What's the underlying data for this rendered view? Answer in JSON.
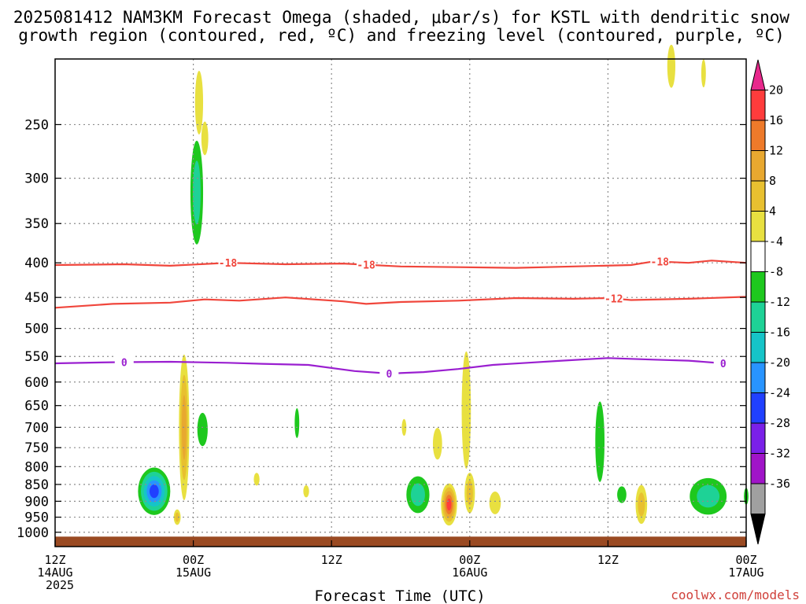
{
  "title": {
    "line1": "2025081412 NAM3KM Forecast Omega (shaded, μbar/s) for KSTL with dendritic snow",
    "line2": "growth region (contoured, red, ºC) and freezing level (contoured, purple, ºC)"
  },
  "xlabel": "Forecast Time (UTC)",
  "credit": "coolwx.com/models",
  "colors": {
    "dgz_contour": "#f0463c",
    "freezing_contour": "#9a1fd0",
    "ground": "#9a4a22",
    "grid": "#8c8c8c"
  },
  "chart_data": {
    "type": "heatmap",
    "y_axis": {
      "scale": "pressure (log)",
      "ylim": [
        1050,
        200
      ],
      "ticks": [
        250,
        300,
        350,
        400,
        450,
        500,
        550,
        600,
        650,
        700,
        750,
        800,
        850,
        900,
        950,
        1000
      ]
    },
    "x_axis": {
      "xlim": [
        "2025-08-14T12Z",
        "2025-08-17T00Z"
      ],
      "ticks": [
        {
          "t": 0,
          "line1": "12Z",
          "line2": "14AUG",
          "line3": "2025"
        },
        {
          "t": 12,
          "line1": "00Z",
          "line2": "15AUG",
          "line3": ""
        },
        {
          "t": 24,
          "line1": "12Z",
          "line2": "",
          "line3": ""
        },
        {
          "t": 36,
          "line1": "00Z",
          "line2": "16AUG",
          "line3": ""
        },
        {
          "t": 48,
          "line1": "12Z",
          "line2": "",
          "line3": ""
        },
        {
          "t": 60,
          "line1": "00Z",
          "line2": "17AUG",
          "line3": ""
        }
      ]
    },
    "colorbar": {
      "labels": [
        "20",
        "16",
        "12",
        "8",
        "4",
        "-4",
        "-8",
        "-12",
        "-16",
        "-20",
        "-24",
        "-28",
        "-32",
        "-36"
      ],
      "colors": [
        "#e8288c",
        "#ff3c3c",
        "#ee7a2a",
        "#e8a830",
        "#e8c030",
        "#e8e040",
        "#ffffff",
        "#1ec81e",
        "#1ed296",
        "#16c4c8",
        "#2894ff",
        "#2040ff",
        "#7a20e8",
        "#a014c8",
        "#a0a0a0",
        "#000000"
      ]
    },
    "contours": [
      {
        "name": "-18",
        "level": -18,
        "color": "#f0463c",
        "label_at": [
          15,
          27,
          52.5
        ],
        "points": [
          [
            0,
            403
          ],
          [
            6,
            402
          ],
          [
            10,
            404
          ],
          [
            15,
            400
          ],
          [
            20,
            402
          ],
          [
            25,
            401
          ],
          [
            30,
            405
          ],
          [
            35,
            406
          ],
          [
            40,
            407
          ],
          [
            45,
            405
          ],
          [
            50,
            403
          ],
          [
            52,
            398
          ],
          [
            55,
            400
          ],
          [
            57,
            397
          ],
          [
            60,
            400
          ],
          [
            65,
            401
          ],
          [
            70,
            400
          ],
          [
            74,
            395
          ]
        ]
      },
      {
        "name": "-12",
        "level": -12,
        "color": "#f0463c",
        "label_at": [
          48.5
        ],
        "points": [
          [
            0,
            466
          ],
          [
            5,
            460
          ],
          [
            10,
            458
          ],
          [
            13,
            453
          ],
          [
            16,
            455
          ],
          [
            20,
            450
          ],
          [
            25,
            456
          ],
          [
            27,
            460
          ],
          [
            30,
            457
          ],
          [
            35,
            455
          ],
          [
            40,
            451
          ],
          [
            45,
            452
          ],
          [
            48,
            451
          ],
          [
            50,
            454
          ],
          [
            55,
            452
          ],
          [
            60,
            449
          ],
          [
            62,
            445
          ],
          [
            65,
            446
          ],
          [
            70,
            444
          ],
          [
            74,
            441
          ]
        ]
      },
      {
        "name": "0",
        "level": 0,
        "color": "#9a1fd0",
        "label_at": [
          6,
          29,
          58
        ],
        "points": [
          [
            0,
            563
          ],
          [
            5,
            561
          ],
          [
            10,
            560
          ],
          [
            15,
            562
          ],
          [
            18,
            564
          ],
          [
            22,
            566
          ],
          [
            26,
            578
          ],
          [
            29,
            583
          ],
          [
            32,
            580
          ],
          [
            35,
            574
          ],
          [
            38,
            566
          ],
          [
            41,
            562
          ],
          [
            44,
            558
          ],
          [
            48,
            553
          ],
          [
            52,
            556
          ],
          [
            55,
            558
          ],
          [
            58,
            563
          ],
          [
            61,
            568
          ],
          [
            63,
            576
          ],
          [
            65,
            570
          ],
          [
            68,
            564
          ],
          [
            71,
            567
          ],
          [
            74,
            575
          ]
        ]
      }
    ],
    "omega_cells": [
      {
        "t": 8.6,
        "p": 870,
        "dt": 1.4,
        "dp": 70,
        "levels": [
          "#1ec81e",
          "#1ed296",
          "#16c4c8",
          "#2894ff",
          "#2040ff"
        ]
      },
      {
        "t": 11.2,
        "p": 700,
        "dt": 0.45,
        "dp": 170,
        "levels": [
          "#e8e040",
          "#e8c030",
          "#e8a830"
        ]
      },
      {
        "t": 10.6,
        "p": 950,
        "dt": 0.3,
        "dp": 25,
        "levels": [
          "#e8e040",
          "#e8c030"
        ]
      },
      {
        "t": 12.8,
        "p": 705,
        "dt": 0.45,
        "dp": 40,
        "levels": [
          "#1ec81e"
        ]
      },
      {
        "t": 12.5,
        "p": 232,
        "dt": 0.35,
        "dp": 25,
        "levels": [
          "#e8e040"
        ]
      },
      {
        "t": 13.0,
        "p": 262,
        "dt": 0.3,
        "dp": 15,
        "levels": [
          "#e8e040"
        ]
      },
      {
        "t": 12.3,
        "p": 315,
        "dt": 0.55,
        "dp": 55,
        "levels": [
          "#1ec81e",
          "#1ed296"
        ]
      },
      {
        "t": 17.5,
        "p": 835,
        "dt": 0.25,
        "dp": 18,
        "levels": [
          "#e8e040"
        ]
      },
      {
        "t": 21.0,
        "p": 690,
        "dt": 0.2,
        "dp": 35,
        "levels": [
          "#1ec81e"
        ]
      },
      {
        "t": 21.8,
        "p": 870,
        "dt": 0.25,
        "dp": 18,
        "levels": [
          "#e8e040"
        ]
      },
      {
        "t": 31.5,
        "p": 880,
        "dt": 1.0,
        "dp": 55,
        "levels": [
          "#1ec81e",
          "#1ed296"
        ]
      },
      {
        "t": 34.2,
        "p": 910,
        "dt": 0.7,
        "dp": 65,
        "levels": [
          "#e8e040",
          "#e8c030",
          "#e8a830",
          "#ee7a2a",
          "#ff3c3c"
        ]
      },
      {
        "t": 33.2,
        "p": 740,
        "dt": 0.4,
        "dp": 40,
        "levels": [
          "#e8e040"
        ]
      },
      {
        "t": 35.7,
        "p": 660,
        "dt": 0.4,
        "dp": 130,
        "levels": [
          "#e8e040"
        ]
      },
      {
        "t": 30.3,
        "p": 700,
        "dt": 0.2,
        "dp": 20,
        "levels": [
          "#e8e040"
        ]
      },
      {
        "t": 36.0,
        "p": 875,
        "dt": 0.45,
        "dp": 60,
        "levels": [
          "#e8e040",
          "#e8c030"
        ]
      },
      {
        "t": 38.2,
        "p": 905,
        "dt": 0.5,
        "dp": 35,
        "levels": [
          "#e8e040"
        ]
      },
      {
        "t": 47.3,
        "p": 735,
        "dt": 0.4,
        "dp": 100,
        "levels": [
          "#1ec81e"
        ]
      },
      {
        "t": 49.2,
        "p": 880,
        "dt": 0.4,
        "dp": 25,
        "levels": [
          "#1ec81e"
        ]
      },
      {
        "t": 50.9,
        "p": 910,
        "dt": 0.5,
        "dp": 60,
        "levels": [
          "#e8e040",
          "#e8c030"
        ]
      },
      {
        "t": 56.7,
        "p": 885,
        "dt": 1.6,
        "dp": 55,
        "levels": [
          "#1ec81e",
          "#1ed296"
        ]
      },
      {
        "t": 53.5,
        "p": 205,
        "dt": 0.35,
        "dp": 15,
        "levels": [
          "#e8e040"
        ]
      },
      {
        "t": 56.3,
        "p": 210,
        "dt": 0.2,
        "dp": 10,
        "levels": [
          "#e8e040"
        ]
      },
      {
        "t": 60.0,
        "p": 885,
        "dt": 0.2,
        "dp": 25,
        "levels": [
          "#1ec81e"
        ]
      }
    ]
  }
}
